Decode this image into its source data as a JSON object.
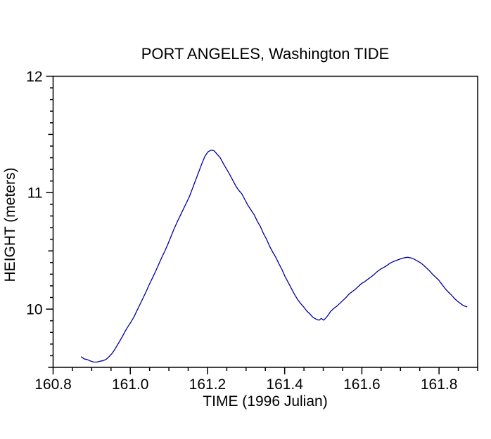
{
  "window": {
    "background": "#FFFFFF",
    "text_color": "#000000"
  },
  "chart_data": {
    "type": "line",
    "title": "PORT ANGELES, Washington TIDE",
    "xlabel": "TIME (1996 Julian)",
    "ylabel": "HEIGHT (meters)",
    "xlim": [
      160.8,
      161.9
    ],
    "ylim": [
      9.5,
      12.0
    ],
    "x_tick_labels": [
      "160.8",
      "161.0",
      "161.2",
      "161.4",
      "161.6",
      "161.8"
    ],
    "x_major_step": 0.2,
    "x_minor_step": 0.05,
    "y_tick_labels": [
      "10",
      "11",
      "12"
    ],
    "y_major_step": 1.0,
    "y_half_step": 0.5,
    "y_minor_step": 0.1,
    "grid": false,
    "legend": null,
    "axis_color": "#000000",
    "line_color": "#0000A0",
    "series": [
      {
        "name": "tide height",
        "points": [
          [
            160.873,
            9.59
          ],
          [
            160.881,
            9.572
          ],
          [
            160.889,
            9.566
          ],
          [
            160.897,
            9.554
          ],
          [
            160.905,
            9.546
          ],
          [
            160.913,
            9.545
          ],
          [
            160.921,
            9.552
          ],
          [
            160.929,
            9.557
          ],
          [
            160.937,
            9.568
          ],
          [
            160.945,
            9.592
          ],
          [
            160.953,
            9.62
          ],
          [
            160.961,
            9.66
          ],
          [
            160.969,
            9.705
          ],
          [
            160.977,
            9.75
          ],
          [
            160.985,
            9.8
          ],
          [
            160.993,
            9.845
          ],
          [
            161.001,
            9.885
          ],
          [
            161.009,
            9.93
          ],
          [
            161.017,
            9.985
          ],
          [
            161.025,
            10.04
          ],
          [
            161.033,
            10.095
          ],
          [
            161.041,
            10.15
          ],
          [
            161.049,
            10.21
          ],
          [
            161.057,
            10.265
          ],
          [
            161.065,
            10.32
          ],
          [
            161.073,
            10.38
          ],
          [
            161.081,
            10.44
          ],
          [
            161.089,
            10.495
          ],
          [
            161.097,
            10.555
          ],
          [
            161.105,
            10.62
          ],
          [
            161.113,
            10.685
          ],
          [
            161.121,
            10.745
          ],
          [
            161.129,
            10.8
          ],
          [
            161.137,
            10.855
          ],
          [
            161.145,
            10.91
          ],
          [
            161.153,
            10.965
          ],
          [
            161.161,
            11.035
          ],
          [
            161.169,
            11.105
          ],
          [
            161.177,
            11.175
          ],
          [
            161.185,
            11.245
          ],
          [
            161.193,
            11.31
          ],
          [
            161.201,
            11.35
          ],
          [
            161.209,
            11.365
          ],
          [
            161.217,
            11.36
          ],
          [
            161.225,
            11.33
          ],
          [
            161.233,
            11.3
          ],
          [
            161.241,
            11.25
          ],
          [
            161.249,
            11.205
          ],
          [
            161.257,
            11.16
          ],
          [
            161.265,
            11.11
          ],
          [
            161.273,
            11.06
          ],
          [
            161.281,
            11.02
          ],
          [
            161.289,
            10.99
          ],
          [
            161.297,
            10.94
          ],
          [
            161.305,
            10.89
          ],
          [
            161.313,
            10.85
          ],
          [
            161.321,
            10.81
          ],
          [
            161.329,
            10.755
          ],
          [
            161.337,
            10.71
          ],
          [
            161.345,
            10.65
          ],
          [
            161.353,
            10.6
          ],
          [
            161.361,
            10.54
          ],
          [
            161.369,
            10.49
          ],
          [
            161.377,
            10.445
          ],
          [
            161.385,
            10.39
          ],
          [
            161.393,
            10.34
          ],
          [
            161.401,
            10.28
          ],
          [
            161.409,
            10.23
          ],
          [
            161.417,
            10.18
          ],
          [
            161.425,
            10.13
          ],
          [
            161.433,
            10.085
          ],
          [
            161.441,
            10.05
          ],
          [
            161.449,
            10.02
          ],
          [
            161.457,
            9.985
          ],
          [
            161.465,
            9.96
          ],
          [
            161.473,
            9.93
          ],
          [
            161.481,
            9.915
          ],
          [
            161.489,
            9.905
          ],
          [
            161.495,
            9.92
          ],
          [
            161.501,
            9.905
          ],
          [
            161.507,
            9.925
          ],
          [
            161.513,
            9.95
          ],
          [
            161.519,
            9.98
          ],
          [
            161.527,
            10.005
          ],
          [
            161.535,
            10.025
          ],
          [
            161.543,
            10.05
          ],
          [
            161.551,
            10.075
          ],
          [
            161.559,
            10.1
          ],
          [
            161.567,
            10.13
          ],
          [
            161.575,
            10.15
          ],
          [
            161.583,
            10.17
          ],
          [
            161.591,
            10.195
          ],
          [
            161.599,
            10.22
          ],
          [
            161.607,
            10.235
          ],
          [
            161.615,
            10.255
          ],
          [
            161.623,
            10.275
          ],
          [
            161.631,
            10.295
          ],
          [
            161.639,
            10.32
          ],
          [
            161.647,
            10.34
          ],
          [
            161.655,
            10.355
          ],
          [
            161.663,
            10.37
          ],
          [
            161.671,
            10.39
          ],
          [
            161.679,
            10.405
          ],
          [
            161.687,
            10.415
          ],
          [
            161.695,
            10.425
          ],
          [
            161.703,
            10.435
          ],
          [
            161.711,
            10.442
          ],
          [
            161.719,
            10.445
          ],
          [
            161.727,
            10.44
          ],
          [
            161.735,
            10.43
          ],
          [
            161.743,
            10.415
          ],
          [
            161.751,
            10.4
          ],
          [
            161.759,
            10.38
          ],
          [
            161.767,
            10.355
          ],
          [
            161.775,
            10.33
          ],
          [
            161.783,
            10.3
          ],
          [
            161.791,
            10.275
          ],
          [
            161.799,
            10.25
          ],
          [
            161.807,
            10.215
          ],
          [
            161.815,
            10.18
          ],
          [
            161.823,
            10.15
          ],
          [
            161.831,
            10.125
          ],
          [
            161.839,
            10.095
          ],
          [
            161.847,
            10.07
          ],
          [
            161.855,
            10.05
          ],
          [
            161.863,
            10.03
          ],
          [
            161.872,
            10.02
          ]
        ]
      }
    ]
  }
}
